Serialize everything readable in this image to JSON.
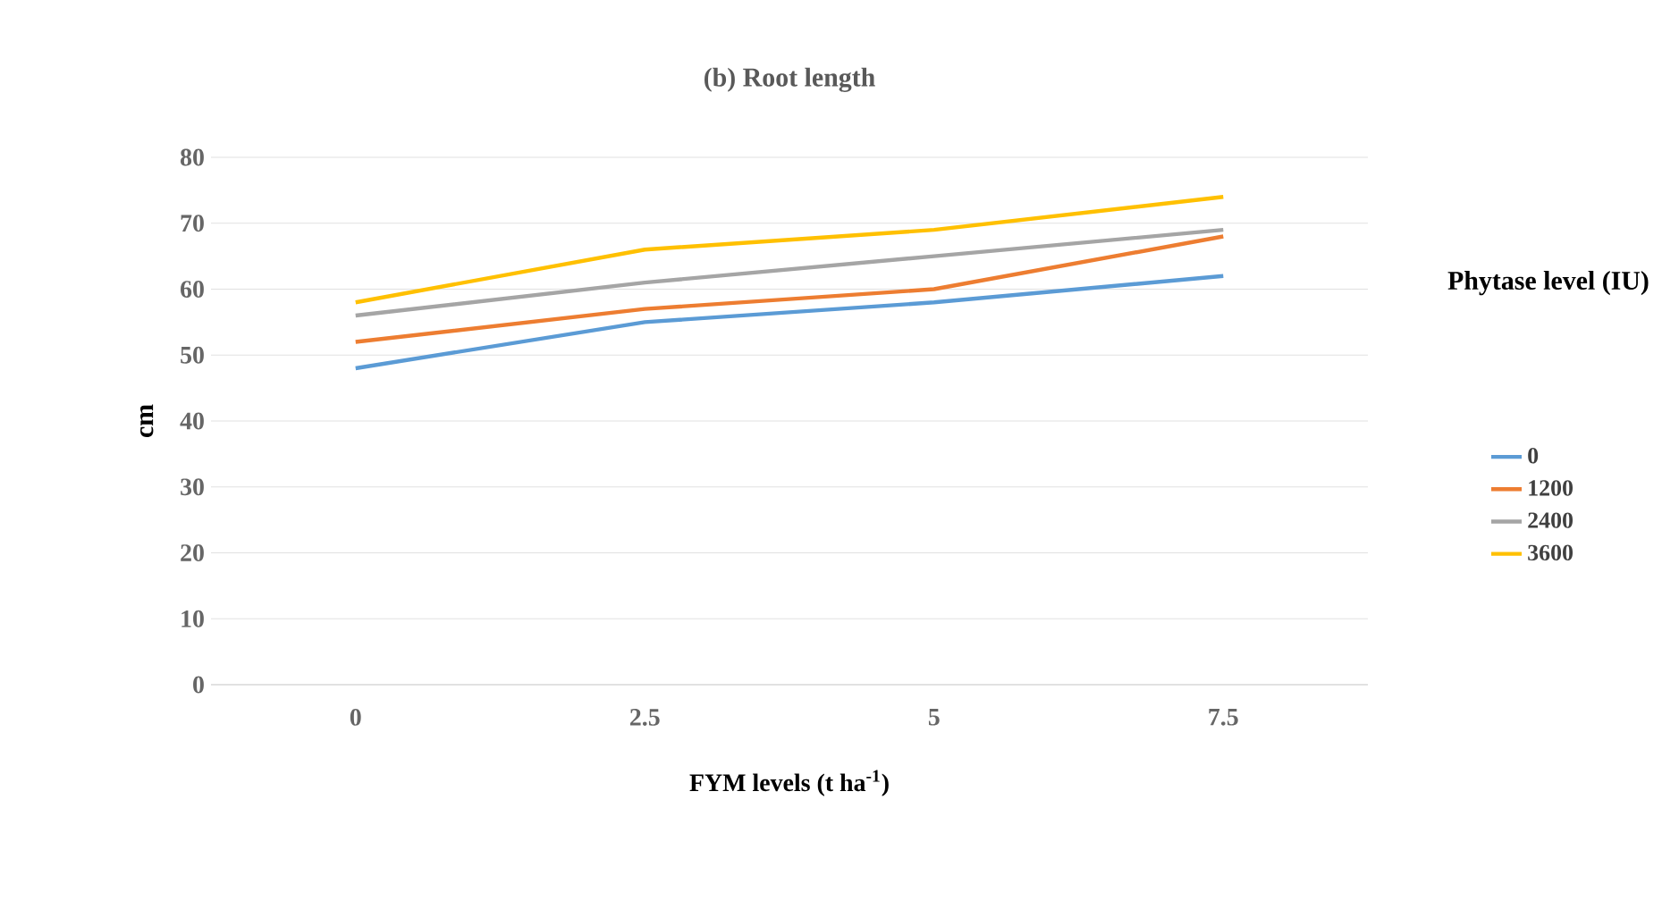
{
  "chart_data": {
    "type": "line",
    "title": "(b) Root length",
    "xlabel": "FYM levels (t ha$^{-1}$)",
    "ylabel": "cm",
    "legend_title": "Phytase level (IU)",
    "categories": [
      "0",
      "2.5",
      "5",
      "7.5"
    ],
    "series": [
      {
        "name": "0",
        "color": "#5b9bd5",
        "values": [
          48,
          55,
          58,
          62
        ]
      },
      {
        "name": "1200",
        "color": "#ed7d31",
        "values": [
          52,
          57,
          60,
          68
        ]
      },
      {
        "name": "2400",
        "color": "#a5a5a5",
        "values": [
          56,
          61,
          65,
          69
        ]
      },
      {
        "name": "3600",
        "color": "#ffc000",
        "values": [
          58,
          66,
          69,
          74
        ]
      }
    ],
    "ylim": [
      0,
      80
    ],
    "yticks": [
      0,
      10,
      20,
      30,
      40,
      50,
      60,
      70,
      80
    ],
    "grid": "y",
    "legend": "right",
    "marker": "none",
    "line_style": "solid"
  }
}
